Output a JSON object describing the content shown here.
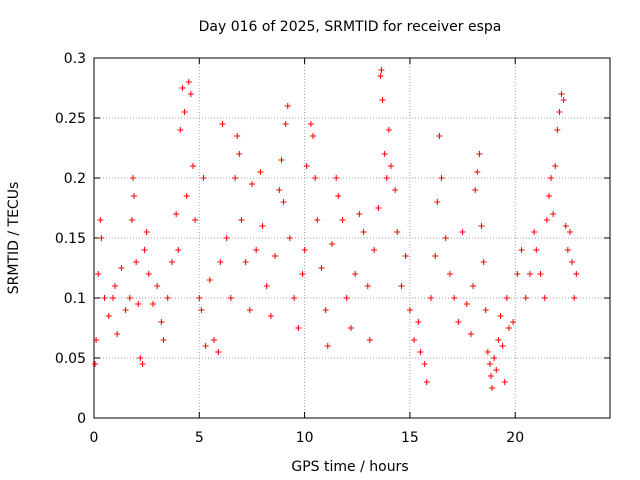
{
  "chart_data": {
    "type": "scatter",
    "title": "Day 016 of 2025, SRMTID for receiver espa",
    "xlabel": "GPS time / hours",
    "ylabel": "SRMTID / TECUs",
    "xlim": [
      0,
      24.5
    ],
    "ylim": [
      0,
      0.3
    ],
    "xticks": [
      0,
      5,
      10,
      15,
      20
    ],
    "xtick_labels": [
      "0",
      "5",
      "10",
      "15",
      "20"
    ],
    "yticks": [
      0,
      0.05,
      0.1,
      0.15,
      0.2,
      0.25,
      0.3
    ],
    "ytick_labels": [
      "0",
      "0.05",
      "0.1",
      "0.15",
      "0.2",
      "0.25",
      "0.3"
    ],
    "grid": true,
    "marker": "plus",
    "color": "#ff0000",
    "series": [
      {
        "name": "SRMTID",
        "points": [
          [
            0.05,
            0.045
          ],
          [
            0.1,
            0.065
          ],
          [
            0.2,
            0.12
          ],
          [
            0.3,
            0.165
          ],
          [
            0.35,
            0.15
          ],
          [
            0.5,
            0.1
          ],
          [
            0.7,
            0.085
          ],
          [
            0.9,
            0.1
          ],
          [
            1.0,
            0.11
          ],
          [
            1.1,
            0.07
          ],
          [
            1.3,
            0.125
          ],
          [
            1.5,
            0.09
          ],
          [
            1.7,
            0.1
          ],
          [
            1.8,
            0.165
          ],
          [
            1.85,
            0.2
          ],
          [
            1.9,
            0.185
          ],
          [
            2.0,
            0.13
          ],
          [
            2.1,
            0.095
          ],
          [
            2.2,
            0.05
          ],
          [
            2.3,
            0.045
          ],
          [
            2.4,
            0.14
          ],
          [
            2.5,
            0.155
          ],
          [
            2.6,
            0.12
          ],
          [
            2.8,
            0.095
          ],
          [
            3.0,
            0.11
          ],
          [
            3.2,
            0.08
          ],
          [
            3.3,
            0.065
          ],
          [
            3.5,
            0.1
          ],
          [
            3.7,
            0.13
          ],
          [
            3.9,
            0.17
          ],
          [
            4.0,
            0.14
          ],
          [
            4.1,
            0.24
          ],
          [
            4.2,
            0.275
          ],
          [
            4.3,
            0.255
          ],
          [
            4.4,
            0.185
          ],
          [
            4.5,
            0.28
          ],
          [
            4.6,
            0.27
          ],
          [
            4.7,
            0.21
          ],
          [
            4.8,
            0.165
          ],
          [
            5.0,
            0.1
          ],
          [
            5.1,
            0.09
          ],
          [
            5.2,
            0.2
          ],
          [
            5.3,
            0.06
          ],
          [
            5.5,
            0.115
          ],
          [
            5.7,
            0.065
          ],
          [
            5.9,
            0.055
          ],
          [
            6.0,
            0.13
          ],
          [
            6.1,
            0.245
          ],
          [
            6.3,
            0.15
          ],
          [
            6.5,
            0.1
          ],
          [
            6.7,
            0.2
          ],
          [
            6.8,
            0.235
          ],
          [
            6.9,
            0.22
          ],
          [
            7.0,
            0.165
          ],
          [
            7.2,
            0.13
          ],
          [
            7.4,
            0.09
          ],
          [
            7.5,
            0.195
          ],
          [
            7.7,
            0.14
          ],
          [
            7.9,
            0.205
          ],
          [
            8.0,
            0.16
          ],
          [
            8.2,
            0.11
          ],
          [
            8.4,
            0.085
          ],
          [
            8.6,
            0.135
          ],
          [
            8.8,
            0.19
          ],
          [
            8.9,
            0.215
          ],
          [
            9.0,
            0.18
          ],
          [
            9.1,
            0.245
          ],
          [
            9.2,
            0.26
          ],
          [
            9.3,
            0.15
          ],
          [
            9.5,
            0.1
          ],
          [
            9.7,
            0.075
          ],
          [
            9.9,
            0.12
          ],
          [
            10.0,
            0.14
          ],
          [
            10.1,
            0.21
          ],
          [
            10.3,
            0.245
          ],
          [
            10.4,
            0.235
          ],
          [
            10.5,
            0.2
          ],
          [
            10.6,
            0.165
          ],
          [
            10.8,
            0.125
          ],
          [
            11.0,
            0.09
          ],
          [
            11.1,
            0.06
          ],
          [
            11.3,
            0.145
          ],
          [
            11.5,
            0.2
          ],
          [
            11.6,
            0.185
          ],
          [
            11.8,
            0.165
          ],
          [
            12.0,
            0.1
          ],
          [
            12.2,
            0.075
          ],
          [
            12.4,
            0.12
          ],
          [
            12.6,
            0.17
          ],
          [
            12.8,
            0.155
          ],
          [
            13.0,
            0.11
          ],
          [
            13.1,
            0.065
          ],
          [
            13.3,
            0.14
          ],
          [
            13.5,
            0.175
          ],
          [
            13.6,
            0.285
          ],
          [
            13.65,
            0.29
          ],
          [
            13.7,
            0.265
          ],
          [
            13.8,
            0.22
          ],
          [
            13.9,
            0.2
          ],
          [
            14.0,
            0.24
          ],
          [
            14.1,
            0.21
          ],
          [
            14.3,
            0.19
          ],
          [
            14.4,
            0.155
          ],
          [
            14.6,
            0.11
          ],
          [
            14.8,
            0.135
          ],
          [
            15.0,
            0.09
          ],
          [
            15.2,
            0.065
          ],
          [
            15.4,
            0.08
          ],
          [
            15.5,
            0.055
          ],
          [
            15.7,
            0.045
          ],
          [
            15.8,
            0.03
          ],
          [
            16.0,
            0.1
          ],
          [
            16.2,
            0.135
          ],
          [
            16.3,
            0.18
          ],
          [
            16.4,
            0.235
          ],
          [
            16.5,
            0.2
          ],
          [
            16.7,
            0.15
          ],
          [
            16.9,
            0.12
          ],
          [
            17.1,
            0.1
          ],
          [
            17.3,
            0.08
          ],
          [
            17.5,
            0.155
          ],
          [
            17.7,
            0.095
          ],
          [
            17.9,
            0.07
          ],
          [
            18.0,
            0.11
          ],
          [
            18.1,
            0.19
          ],
          [
            18.2,
            0.205
          ],
          [
            18.3,
            0.22
          ],
          [
            18.4,
            0.16
          ],
          [
            18.5,
            0.13
          ],
          [
            18.6,
            0.09
          ],
          [
            18.7,
            0.055
          ],
          [
            18.8,
            0.045
          ],
          [
            18.85,
            0.035
          ],
          [
            18.9,
            0.025
          ],
          [
            19.0,
            0.05
          ],
          [
            19.1,
            0.04
          ],
          [
            19.2,
            0.065
          ],
          [
            19.3,
            0.085
          ],
          [
            19.4,
            0.06
          ],
          [
            19.5,
            0.03
          ],
          [
            19.6,
            0.1
          ],
          [
            19.7,
            0.075
          ],
          [
            19.9,
            0.08
          ],
          [
            20.1,
            0.12
          ],
          [
            20.3,
            0.14
          ],
          [
            20.5,
            0.1
          ],
          [
            20.7,
            0.12
          ],
          [
            20.9,
            0.155
          ],
          [
            21.0,
            0.14
          ],
          [
            21.2,
            0.12
          ],
          [
            21.4,
            0.1
          ],
          [
            21.5,
            0.165
          ],
          [
            21.6,
            0.185
          ],
          [
            21.7,
            0.2
          ],
          [
            21.8,
            0.17
          ],
          [
            21.9,
            0.21
          ],
          [
            22.0,
            0.24
          ],
          [
            22.1,
            0.255
          ],
          [
            22.2,
            0.27
          ],
          [
            22.3,
            0.265
          ],
          [
            22.4,
            0.16
          ],
          [
            22.5,
            0.14
          ],
          [
            22.6,
            0.155
          ],
          [
            22.7,
            0.13
          ],
          [
            22.8,
            0.1
          ],
          [
            22.9,
            0.12
          ]
        ]
      }
    ]
  }
}
